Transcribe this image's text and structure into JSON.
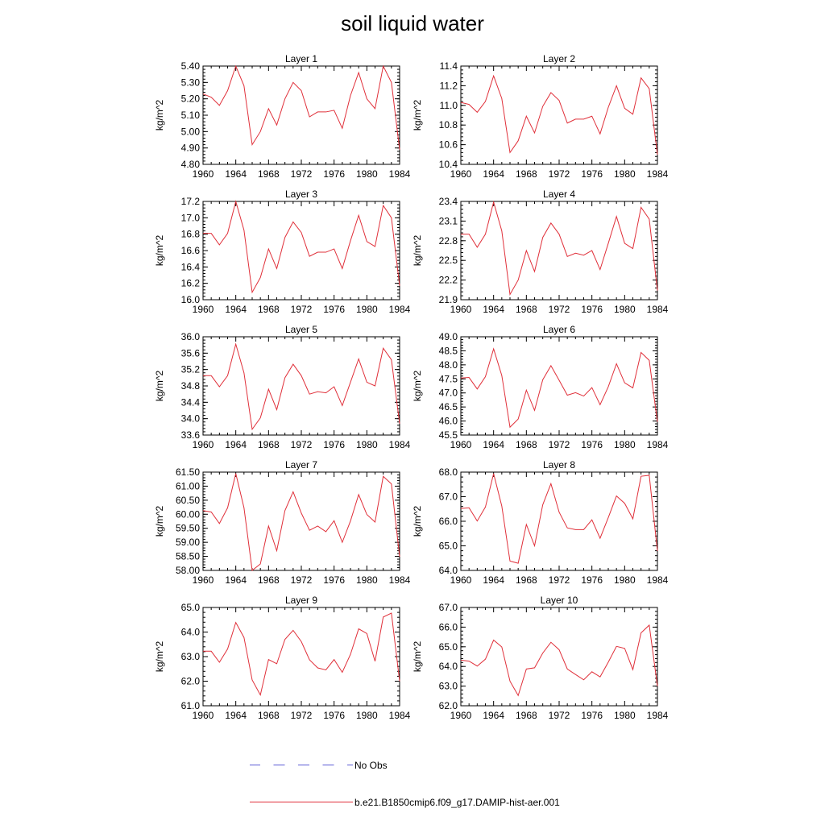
{
  "title": "soil liquid water",
  "legend": {
    "no_obs": "No Obs",
    "model": "b.e21.B1850cmip6.f09_g17.DAMIP-hist-aer.001"
  },
  "colors": {
    "model_line": "#e0303a",
    "no_obs_line": "#5a5ad6",
    "axis": "#000000"
  },
  "chart_data": [
    {
      "type": "line",
      "title": "Layer 1",
      "ylabel": "kg/m^2",
      "xlim": [
        1960,
        1984
      ],
      "ylim": [
        4.8,
        5.4
      ],
      "xticks": [
        "1960",
        "1964",
        "1968",
        "1972",
        "1976",
        "1980",
        "1984"
      ],
      "yticks": [
        "4.80",
        "4.90",
        "5.00",
        "5.10",
        "5.20",
        "5.30",
        "5.40"
      ],
      "x": [
        1960,
        1961,
        1962,
        1963,
        1964,
        1965,
        1966,
        1967,
        1968,
        1969,
        1970,
        1971,
        1972,
        1973,
        1974,
        1975,
        1976,
        1977,
        1978,
        1979,
        1980,
        1981,
        1982,
        1983,
        1984
      ],
      "series": [
        {
          "values": [
            5.23,
            5.21,
            5.16,
            5.25,
            5.4,
            5.28,
            4.92,
            5.0,
            5.14,
            5.04,
            5.2,
            5.3,
            5.25,
            5.09,
            5.12,
            5.12,
            5.13,
            5.02,
            5.22,
            5.36,
            5.2,
            5.14,
            5.4,
            5.3,
            4.89
          ]
        }
      ]
    },
    {
      "type": "line",
      "title": "Layer 2",
      "ylabel": "kg/m^2",
      "xlim": [
        1960,
        1984
      ],
      "ylim": [
        10.4,
        11.4
      ],
      "xticks": [
        "1960",
        "1964",
        "1968",
        "1972",
        "1976",
        "1980",
        "1984"
      ],
      "yticks": [
        "10.4",
        "10.6",
        "10.8",
        "11.0",
        "11.2",
        "11.4"
      ],
      "x": [
        1960,
        1961,
        1962,
        1963,
        1964,
        1965,
        1966,
        1967,
        1968,
        1969,
        1970,
        1971,
        1972,
        1973,
        1974,
        1975,
        1976,
        1977,
        1978,
        1979,
        1980,
        1981,
        1982,
        1983,
        1984
      ],
      "series": [
        {
          "values": [
            11.03,
            11.01,
            10.93,
            11.04,
            11.3,
            11.07,
            10.52,
            10.64,
            10.89,
            10.72,
            10.99,
            11.13,
            11.05,
            10.82,
            10.86,
            10.86,
            10.89,
            10.71,
            10.98,
            11.2,
            10.97,
            10.91,
            11.28,
            11.17,
            10.5
          ]
        }
      ]
    },
    {
      "type": "line",
      "title": "Layer 3",
      "ylabel": "kg/m^2",
      "xlim": [
        1960,
        1984
      ],
      "ylim": [
        16.0,
        17.2
      ],
      "xticks": [
        "1960",
        "1964",
        "1968",
        "1972",
        "1976",
        "1980",
        "1984"
      ],
      "yticks": [
        "16.0",
        "16.2",
        "16.4",
        "16.6",
        "16.8",
        "17.0",
        "17.2"
      ],
      "x": [
        1960,
        1961,
        1962,
        1963,
        1964,
        1965,
        1966,
        1967,
        1968,
        1969,
        1970,
        1971,
        1972,
        1973,
        1974,
        1975,
        1976,
        1977,
        1978,
        1979,
        1980,
        1981,
        1982,
        1983,
        1984
      ],
      "series": [
        {
          "values": [
            16.81,
            16.81,
            16.67,
            16.81,
            17.2,
            16.85,
            16.09,
            16.27,
            16.62,
            16.38,
            16.76,
            16.95,
            16.82,
            16.53,
            16.58,
            16.58,
            16.62,
            16.38,
            16.72,
            17.03,
            16.71,
            16.65,
            17.15,
            17.0,
            16.17
          ]
        }
      ]
    },
    {
      "type": "line",
      "title": "Layer 4",
      "ylabel": "kg/m^2",
      "xlim": [
        1960,
        1984
      ],
      "ylim": [
        21.9,
        23.4
      ],
      "xticks": [
        "1960",
        "1964",
        "1968",
        "1972",
        "1976",
        "1980",
        "1984"
      ],
      "yticks": [
        "21.9",
        "22.2",
        "22.5",
        "22.8",
        "23.1",
        "23.4"
      ],
      "x": [
        1960,
        1961,
        1962,
        1963,
        1964,
        1965,
        1966,
        1967,
        1968,
        1969,
        1970,
        1971,
        1972,
        1973,
        1974,
        1975,
        1976,
        1977,
        1978,
        1979,
        1980,
        1981,
        1982,
        1983,
        1984
      ],
      "series": [
        {
          "values": [
            22.9,
            22.9,
            22.7,
            22.9,
            23.39,
            22.95,
            21.98,
            22.2,
            22.65,
            22.33,
            22.85,
            23.07,
            22.9,
            22.56,
            22.61,
            22.58,
            22.65,
            22.36,
            22.76,
            23.17,
            22.76,
            22.68,
            23.31,
            23.13,
            22.04
          ]
        }
      ]
    },
    {
      "type": "line",
      "title": "Layer 5",
      "ylabel": "kg/m^2",
      "xlim": [
        1960,
        1984
      ],
      "ylim": [
        33.6,
        36.0
      ],
      "xticks": [
        "1960",
        "1964",
        "1968",
        "1972",
        "1976",
        "1980",
        "1984"
      ],
      "yticks": [
        "33.6",
        "34.0",
        "34.4",
        "34.8",
        "35.2",
        "35.6",
        "36.0"
      ],
      "x": [
        1960,
        1961,
        1962,
        1963,
        1964,
        1965,
        1966,
        1967,
        1968,
        1969,
        1970,
        1971,
        1972,
        1973,
        1974,
        1975,
        1976,
        1977,
        1978,
        1979,
        1980,
        1981,
        1982,
        1983,
        1984
      ],
      "series": [
        {
          "values": [
            35.05,
            35.05,
            34.78,
            35.05,
            35.82,
            35.12,
            33.74,
            34.02,
            34.72,
            34.22,
            35.0,
            35.33,
            35.05,
            34.6,
            34.66,
            34.63,
            34.78,
            34.32,
            34.89,
            35.46,
            34.89,
            34.8,
            35.72,
            35.44,
            33.88
          ]
        }
      ]
    },
    {
      "type": "line",
      "title": "Layer 6",
      "ylabel": "kg/m^2",
      "xlim": [
        1960,
        1984
      ],
      "ylim": [
        45.5,
        49.0
      ],
      "xticks": [
        "1960",
        "1964",
        "1968",
        "1972",
        "1976",
        "1980",
        "1984"
      ],
      "yticks": [
        "45.5",
        "46.0",
        "46.5",
        "47.0",
        "47.5",
        "48.0",
        "48.5",
        "49.0"
      ],
      "x": [
        1960,
        1961,
        1962,
        1963,
        1964,
        1965,
        1966,
        1967,
        1968,
        1969,
        1970,
        1971,
        1972,
        1973,
        1974,
        1975,
        1976,
        1977,
        1978,
        1979,
        1980,
        1981,
        1982,
        1983,
        1984
      ],
      "series": [
        {
          "values": [
            47.53,
            47.55,
            47.14,
            47.58,
            48.57,
            47.62,
            45.78,
            46.07,
            47.1,
            46.38,
            47.47,
            47.97,
            47.45,
            46.92,
            47.01,
            46.89,
            47.19,
            46.58,
            47.22,
            48.04,
            47.36,
            47.18,
            48.44,
            48.16,
            45.97
          ]
        }
      ]
    },
    {
      "type": "line",
      "title": "Layer 7",
      "ylabel": "kg/m^2",
      "xlim": [
        1960,
        1984
      ],
      "ylim": [
        58.0,
        61.5
      ],
      "xticks": [
        "1960",
        "1964",
        "1968",
        "1972",
        "1976",
        "1980",
        "1984"
      ],
      "yticks": [
        "58.00",
        "58.50",
        "59.00",
        "59.50",
        "60.00",
        "60.50",
        "61.00",
        "61.50"
      ],
      "x": [
        1960,
        1961,
        1962,
        1963,
        1964,
        1965,
        1966,
        1967,
        1968,
        1969,
        1970,
        1971,
        1972,
        1973,
        1974,
        1975,
        1976,
        1977,
        1978,
        1979,
        1980,
        1981,
        1982,
        1983,
        1984
      ],
      "series": [
        {
          "values": [
            60.13,
            60.08,
            59.67,
            60.23,
            61.45,
            60.23,
            58.0,
            58.23,
            59.58,
            58.7,
            60.13,
            60.8,
            60.04,
            59.43,
            59.58,
            59.38,
            59.77,
            59.0,
            59.76,
            60.7,
            59.99,
            59.72,
            61.35,
            61.08,
            58.49
          ]
        }
      ]
    },
    {
      "type": "line",
      "title": "Layer 8",
      "ylabel": "kg/m^2",
      "xlim": [
        1960,
        1984
      ],
      "ylim": [
        64.0,
        68.0
      ],
      "xticks": [
        "1960",
        "1964",
        "1968",
        "1972",
        "1976",
        "1980",
        "1984"
      ],
      "yticks": [
        "64.0",
        "65.0",
        "66.0",
        "67.0",
        "68.0"
      ],
      "x": [
        1960,
        1961,
        1962,
        1963,
        1964,
        1965,
        1966,
        1967,
        1968,
        1969,
        1970,
        1971,
        1972,
        1973,
        1974,
        1975,
        1976,
        1977,
        1978,
        1979,
        1980,
        1981,
        1982,
        1983,
        1984
      ],
      "series": [
        {
          "values": [
            66.52,
            66.55,
            66.01,
            66.58,
            67.94,
            66.62,
            64.38,
            64.29,
            65.87,
            65.0,
            66.67,
            67.53,
            66.37,
            65.73,
            65.66,
            65.66,
            66.06,
            65.31,
            66.15,
            67.03,
            66.73,
            66.1,
            67.83,
            67.87,
            64.79
          ]
        }
      ]
    },
    {
      "type": "line",
      "title": "Layer 9",
      "ylabel": "kg/m^2",
      "xlim": [
        1960,
        1984
      ],
      "ylim": [
        61.0,
        65.0
      ],
      "xticks": [
        "1960",
        "1964",
        "1968",
        "1972",
        "1976",
        "1980",
        "1984"
      ],
      "yticks": [
        "61.0",
        "62.0",
        "63.0",
        "64.0",
        "65.0"
      ],
      "x": [
        1960,
        1961,
        1962,
        1963,
        1964,
        1965,
        1966,
        1967,
        1968,
        1969,
        1970,
        1971,
        1972,
        1973,
        1974,
        1975,
        1976,
        1977,
        1978,
        1979,
        1980,
        1981,
        1982,
        1983,
        1984
      ],
      "series": [
        {
          "values": [
            63.22,
            63.22,
            62.77,
            63.31,
            64.39,
            63.78,
            62.05,
            61.44,
            62.88,
            62.71,
            63.7,
            64.07,
            63.61,
            62.87,
            62.54,
            62.46,
            62.88,
            62.36,
            63.09,
            64.13,
            63.94,
            62.81,
            64.61,
            64.77,
            62.0
          ]
        }
      ]
    },
    {
      "type": "line",
      "title": "Layer 10",
      "ylabel": "kg/m^2",
      "xlim": [
        1960,
        1984
      ],
      "ylim": [
        62.0,
        67.0
      ],
      "xticks": [
        "1960",
        "1964",
        "1968",
        "1972",
        "1976",
        "1980",
        "1984"
      ],
      "yticks": [
        "62.0",
        "63.0",
        "64.0",
        "65.0",
        "66.0",
        "67.0"
      ],
      "x": [
        1960,
        1961,
        1962,
        1963,
        1964,
        1965,
        1966,
        1967,
        1968,
        1969,
        1970,
        1971,
        1972,
        1973,
        1974,
        1975,
        1976,
        1977,
        1978,
        1979,
        1980,
        1981,
        1982,
        1983,
        1984
      ],
      "series": [
        {
          "values": [
            64.32,
            64.27,
            64.02,
            64.37,
            65.34,
            64.99,
            63.25,
            62.52,
            63.87,
            63.93,
            64.68,
            65.23,
            64.85,
            63.87,
            63.59,
            63.32,
            63.73,
            63.47,
            64.22,
            65.02,
            64.92,
            63.84,
            65.71,
            66.1,
            63.0
          ]
        }
      ]
    }
  ]
}
